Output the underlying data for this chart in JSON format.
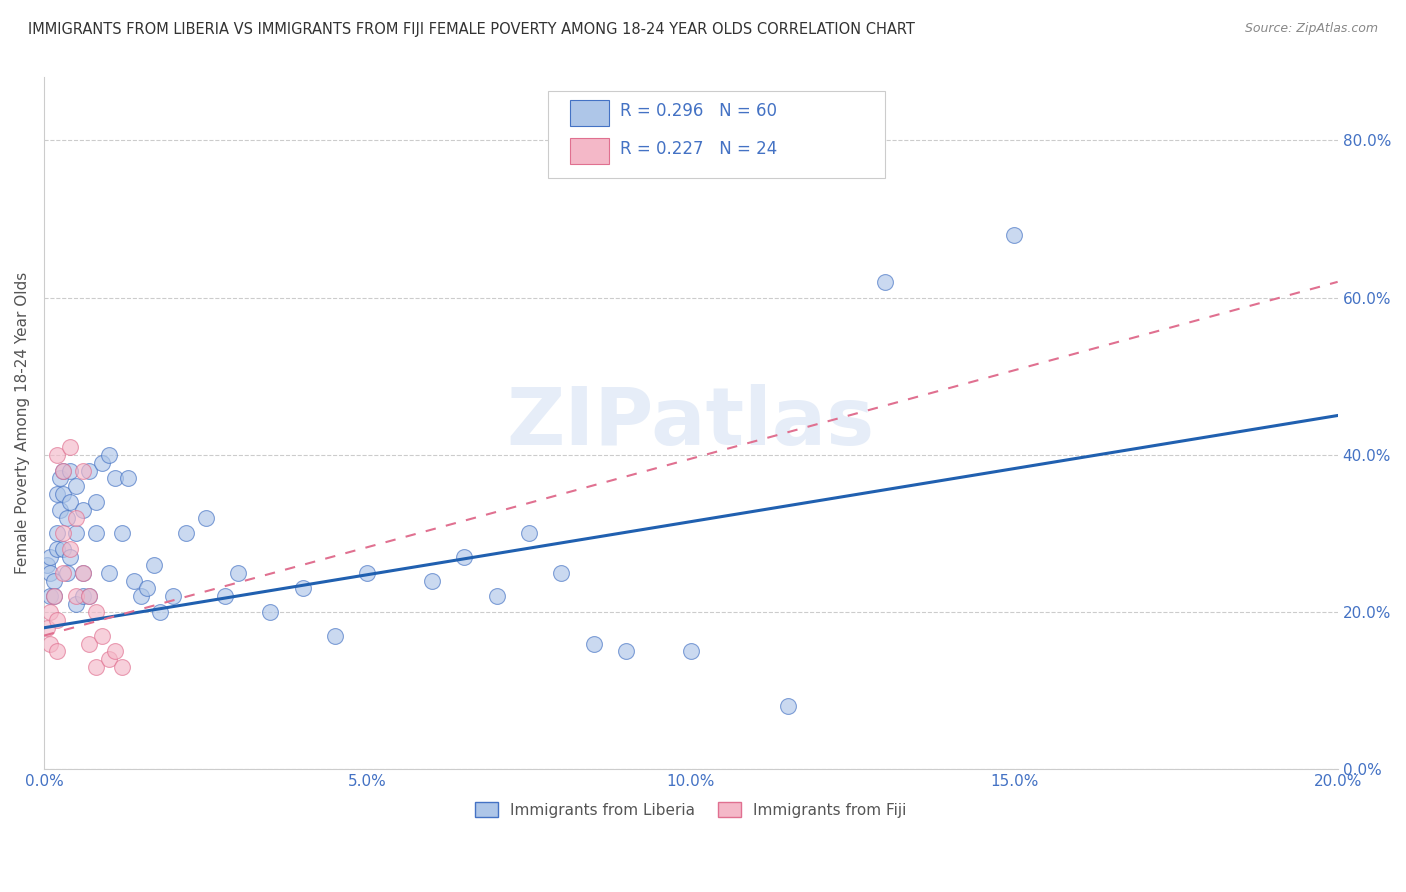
{
  "title": "IMMIGRANTS FROM LIBERIA VS IMMIGRANTS FROM FIJI FEMALE POVERTY AMONG 18-24 YEAR OLDS CORRELATION CHART",
  "source": "Source: ZipAtlas.com",
  "ylabel": "Female Poverty Among 18-24 Year Olds",
  "xlim": [
    0.0,
    0.2
  ],
  "ylim": [
    0.0,
    0.88
  ],
  "xticks": [
    0.0,
    0.05,
    0.1,
    0.15,
    0.2
  ],
  "yticks": [
    0.0,
    0.2,
    0.4,
    0.6,
    0.8
  ],
  "liberia_x": [
    0.0005,
    0.001,
    0.001,
    0.001,
    0.0015,
    0.0015,
    0.002,
    0.002,
    0.002,
    0.0025,
    0.0025,
    0.003,
    0.003,
    0.003,
    0.0035,
    0.0035,
    0.004,
    0.004,
    0.004,
    0.005,
    0.005,
    0.005,
    0.006,
    0.006,
    0.006,
    0.007,
    0.007,
    0.008,
    0.008,
    0.009,
    0.01,
    0.01,
    0.011,
    0.012,
    0.013,
    0.014,
    0.015,
    0.016,
    0.017,
    0.018,
    0.02,
    0.022,
    0.025,
    0.028,
    0.03,
    0.035,
    0.04,
    0.045,
    0.05,
    0.06,
    0.065,
    0.07,
    0.075,
    0.08,
    0.085,
    0.09,
    0.1,
    0.115,
    0.13,
    0.15
  ],
  "liberia_y": [
    0.26,
    0.25,
    0.22,
    0.27,
    0.24,
    0.22,
    0.28,
    0.3,
    0.35,
    0.33,
    0.37,
    0.28,
    0.35,
    0.38,
    0.32,
    0.25,
    0.34,
    0.38,
    0.27,
    0.36,
    0.3,
    0.21,
    0.25,
    0.33,
    0.22,
    0.38,
    0.22,
    0.3,
    0.34,
    0.39,
    0.4,
    0.25,
    0.37,
    0.3,
    0.37,
    0.24,
    0.22,
    0.23,
    0.26,
    0.2,
    0.22,
    0.3,
    0.32,
    0.22,
    0.25,
    0.2,
    0.23,
    0.17,
    0.25,
    0.24,
    0.27,
    0.22,
    0.3,
    0.25,
    0.16,
    0.15,
    0.15,
    0.08,
    0.62,
    0.68
  ],
  "fiji_x": [
    0.0005,
    0.001,
    0.001,
    0.0015,
    0.002,
    0.002,
    0.002,
    0.003,
    0.003,
    0.003,
    0.004,
    0.004,
    0.005,
    0.005,
    0.006,
    0.006,
    0.007,
    0.007,
    0.008,
    0.008,
    0.009,
    0.01,
    0.011,
    0.012
  ],
  "fiji_y": [
    0.18,
    0.16,
    0.2,
    0.22,
    0.15,
    0.19,
    0.4,
    0.25,
    0.3,
    0.38,
    0.28,
    0.41,
    0.32,
    0.22,
    0.25,
    0.38,
    0.22,
    0.16,
    0.2,
    0.13,
    0.17,
    0.14,
    0.15,
    0.13
  ],
  "liberia_color": "#aec6e8",
  "liberia_edge_color": "#4472c4",
  "fiji_color": "#f4b8c8",
  "fiji_edge_color": "#e07090",
  "liberia_line_color": "#2060b0",
  "fiji_line_color": "#e07090",
  "liberia_R": 0.296,
  "liberia_N": 60,
  "fiji_R": 0.227,
  "fiji_N": 24,
  "watermark": "ZIPatlas",
  "watermark_color": "#c8d8f0",
  "legend_label_liberia": "Immigrants from Liberia",
  "legend_label_fiji": "Immigrants from Fiji",
  "blue_line_x0": 0.0,
  "blue_line_y0": 0.18,
  "blue_line_x1": 0.2,
  "blue_line_y1": 0.45,
  "pink_line_x0": 0.0,
  "pink_line_y0": 0.17,
  "pink_line_x1": 0.2,
  "pink_line_y1": 0.62
}
